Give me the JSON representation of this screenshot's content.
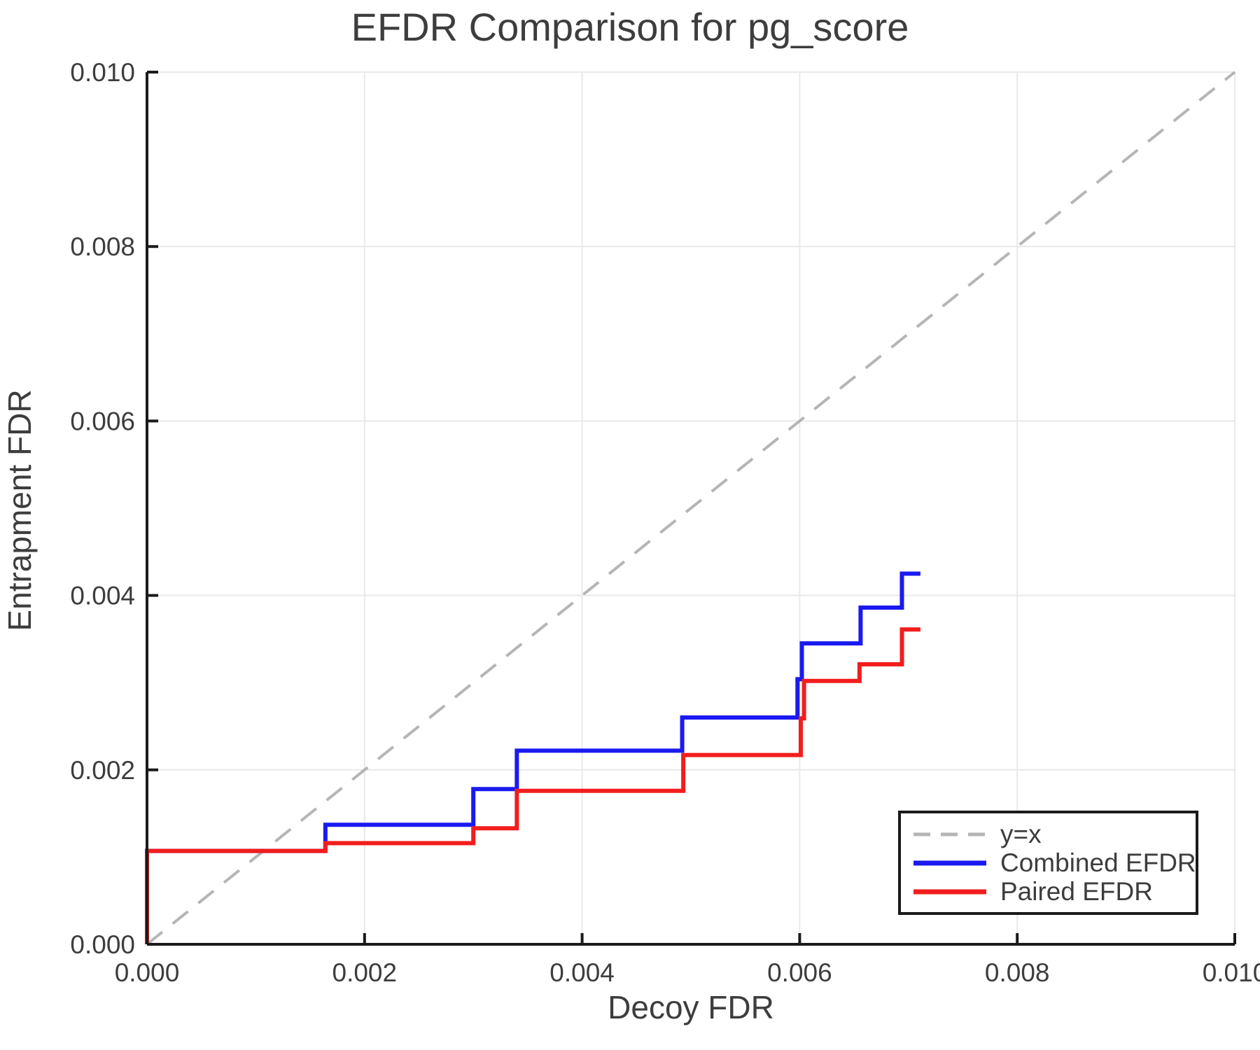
{
  "title": "EFDR Comparison for pg_score",
  "axes": {
    "x": {
      "label": "Decoy FDR",
      "tick_values": [
        0.0,
        0.002,
        0.004,
        0.006,
        0.008,
        0.01
      ],
      "tick_labels": [
        "0.000",
        "0.002",
        "0.004",
        "0.006",
        "0.008",
        "0.010"
      ],
      "range": [
        0.0,
        0.01
      ]
    },
    "y": {
      "label": "Entrapment FDR",
      "tick_values": [
        0.0,
        0.002,
        0.004,
        0.006,
        0.008,
        0.01
      ],
      "tick_labels": [
        "0.000",
        "0.002",
        "0.004",
        "0.006",
        "0.008",
        "0.010"
      ],
      "range": [
        0.0,
        0.01
      ]
    }
  },
  "colors": {
    "grid": "#e9e9e9",
    "spine": "#1a1a1a",
    "text": "#3d3d3d",
    "diagonal": "#b5b5b5",
    "combined": "#1a1af0",
    "paired": "#f21d1d"
  },
  "legend": {
    "items": [
      {
        "label": "y=x",
        "style": "dashed",
        "color": "#b5b5b5"
      },
      {
        "label": "Combined EFDR",
        "style": "solid",
        "color": "#1a1af0"
      },
      {
        "label": "Paired EFDR",
        "style": "solid",
        "color": "#f21d1d"
      }
    ]
  },
  "chart_data": {
    "type": "line",
    "title": "EFDR Comparison for pg_score",
    "xlabel": "Decoy FDR",
    "ylabel": "Entrapment FDR",
    "xlim": [
      0.0,
      0.01
    ],
    "ylim": [
      0.0,
      0.01
    ],
    "grid": true,
    "legend_position": "lower right",
    "series": [
      {
        "name": "y=x",
        "kind": "diagonal-reference",
        "dashed": true,
        "color": "#b5b5b5",
        "x": [
          0.0,
          0.01
        ],
        "y": [
          0.0,
          0.01
        ]
      },
      {
        "name": "Combined EFDR",
        "kind": "step",
        "dashed": false,
        "color": "#1a1af0",
        "starts_at_zero": true,
        "step_x": [
          0.0,
          0.00164,
          0.003,
          0.0034,
          0.00492,
          0.00598,
          0.00602,
          0.00656,
          0.00694
        ],
        "step_y": [
          0.00107,
          0.00137,
          0.00178,
          0.00222,
          0.0026,
          0.00304,
          0.00345,
          0.00386,
          0.00425
        ],
        "x_end": 0.00711
      },
      {
        "name": "Paired EFDR",
        "kind": "step",
        "dashed": false,
        "color": "#f21d1d",
        "starts_at_zero": true,
        "step_x": [
          0.0,
          0.00164,
          0.003,
          0.0034,
          0.00493,
          0.00601,
          0.00604,
          0.00655,
          0.00694
        ],
        "step_y": [
          0.00107,
          0.00116,
          0.00133,
          0.00176,
          0.00217,
          0.00259,
          0.00302,
          0.00321,
          0.00361
        ],
        "x_end": 0.00711
      }
    ]
  }
}
